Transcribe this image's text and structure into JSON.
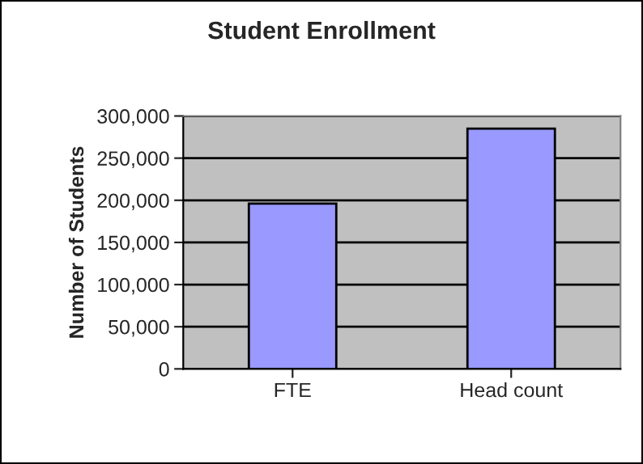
{
  "chart_data": {
    "type": "bar",
    "title": "Student Enrollment",
    "ylabel": "Number of Students",
    "categories": [
      "FTE",
      "Head count"
    ],
    "series": [
      {
        "color": "#9999ff",
        "values": [
          196000,
          285000
        ]
      }
    ],
    "ylim": [
      0,
      300000
    ],
    "yticks": [
      {
        "value": 0,
        "label": "0"
      },
      {
        "value": 50000,
        "label": "50,000"
      },
      {
        "value": 100000,
        "label": "100,000"
      },
      {
        "value": 150000,
        "label": "150,000"
      },
      {
        "value": 200000,
        "label": "200,000"
      },
      {
        "value": 250000,
        "label": "250,000"
      },
      {
        "value": 300000,
        "label": "300,000"
      }
    ],
    "grid": "y",
    "legend": false
  }
}
